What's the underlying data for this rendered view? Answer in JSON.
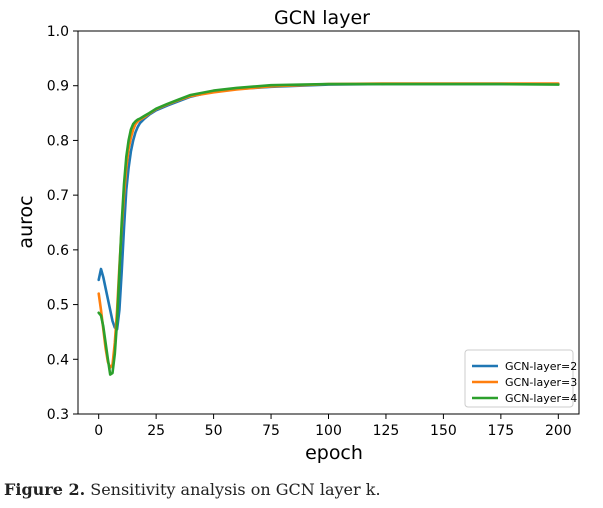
{
  "chart_data": {
    "type": "line",
    "title": "GCN layer",
    "xlabel": "epoch",
    "ylabel": "auroc",
    "xlim": [
      -9,
      209
    ],
    "ylim": [
      0.3,
      1.0
    ],
    "xticks": [
      "0",
      "25",
      "50",
      "75",
      "100",
      "125",
      "150",
      "175",
      "200"
    ],
    "yticks": [
      "0.3",
      "0.4",
      "0.5",
      "0.6",
      "0.7",
      "0.8",
      "0.9",
      "1.0"
    ],
    "grid": false,
    "legend_position": "lower-right",
    "series": [
      {
        "name": "GCN-layer=2",
        "color": "#1f77b4",
        "x": [
          0,
          1,
          2,
          3,
          4,
          5,
          6,
          7,
          8,
          9,
          10,
          11,
          12,
          13,
          14,
          15,
          16,
          17,
          18,
          20,
          22,
          25,
          30,
          35,
          40,
          50,
          60,
          75,
          100,
          125,
          150,
          175,
          200
        ],
        "y": [
          0.545,
          0.565,
          0.55,
          0.53,
          0.51,
          0.49,
          0.47,
          0.458,
          0.455,
          0.49,
          0.56,
          0.64,
          0.71,
          0.75,
          0.78,
          0.8,
          0.815,
          0.825,
          0.832,
          0.84,
          0.847,
          0.855,
          0.864,
          0.872,
          0.88,
          0.89,
          0.894,
          0.898,
          0.902,
          0.903,
          0.903,
          0.903,
          0.903
        ]
      },
      {
        "name": "GCN-layer=3",
        "color": "#ff7f0e",
        "x": [
          0,
          1,
          2,
          3,
          4,
          5,
          6,
          7,
          8,
          9,
          10,
          11,
          12,
          13,
          14,
          15,
          16,
          17,
          18,
          20,
          22,
          25,
          30,
          35,
          40,
          50,
          60,
          75,
          100,
          125,
          150,
          175,
          200
        ],
        "y": [
          0.52,
          0.49,
          0.455,
          0.42,
          0.395,
          0.385,
          0.39,
          0.43,
          0.49,
          0.57,
          0.64,
          0.7,
          0.75,
          0.785,
          0.805,
          0.82,
          0.83,
          0.835,
          0.838,
          0.843,
          0.849,
          0.857,
          0.866,
          0.874,
          0.881,
          0.888,
          0.893,
          0.899,
          0.903,
          0.904,
          0.904,
          0.904,
          0.904
        ]
      },
      {
        "name": "GCN-layer=4",
        "color": "#2ca02c",
        "x": [
          0,
          1,
          2,
          3,
          4,
          5,
          6,
          7,
          8,
          9,
          10,
          11,
          12,
          13,
          14,
          15,
          16,
          17,
          18,
          20,
          22,
          25,
          30,
          35,
          40,
          50,
          60,
          75,
          100,
          125,
          150,
          175,
          200
        ],
        "y": [
          0.485,
          0.48,
          0.46,
          0.43,
          0.4,
          0.372,
          0.375,
          0.41,
          0.47,
          0.56,
          0.65,
          0.72,
          0.77,
          0.8,
          0.82,
          0.83,
          0.835,
          0.838,
          0.84,
          0.845,
          0.85,
          0.858,
          0.867,
          0.875,
          0.883,
          0.891,
          0.896,
          0.901,
          0.903,
          0.903,
          0.903,
          0.903,
          0.902
        ]
      }
    ]
  },
  "caption": {
    "label": "Figure 2.",
    "text": " Sensitivity analysis on GCN layer k."
  }
}
